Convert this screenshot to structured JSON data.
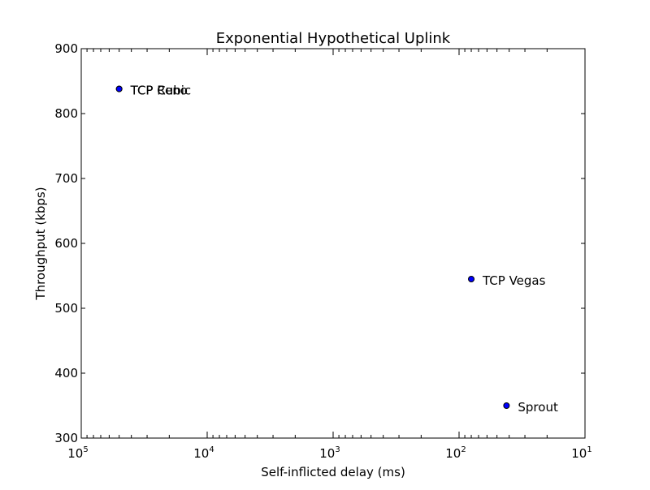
{
  "chart_data": {
    "type": "scatter",
    "title": "Exponential Hypothetical Uplink",
    "xlabel": "Self-inflicted delay (ms)",
    "ylabel": "Throughput (kbps)",
    "x_scale": "log",
    "x_inverted": true,
    "xlim": [
      100000,
      10
    ],
    "ylim": [
      300,
      900
    ],
    "x_ticks": [
      {
        "value": 100000,
        "base": "10",
        "exp": "5"
      },
      {
        "value": 10000,
        "base": "10",
        "exp": "4"
      },
      {
        "value": 1000,
        "base": "10",
        "exp": "3"
      },
      {
        "value": 100,
        "base": "10",
        "exp": "2"
      },
      {
        "value": 10,
        "base": "10",
        "exp": "1"
      }
    ],
    "y_ticks": [
      300,
      400,
      500,
      600,
      700,
      800,
      900
    ],
    "grid": false,
    "marker_color": "#0000ff",
    "points": [
      {
        "label": "TCP Reno",
        "x": 50000,
        "y": 838
      },
      {
        "label": "TCP Cubic",
        "x": 50000,
        "y": 838
      },
      {
        "label": "TCP Vegas",
        "x": 80,
        "y": 545
      },
      {
        "label": "Sprout",
        "x": 42,
        "y": 350
      }
    ]
  }
}
